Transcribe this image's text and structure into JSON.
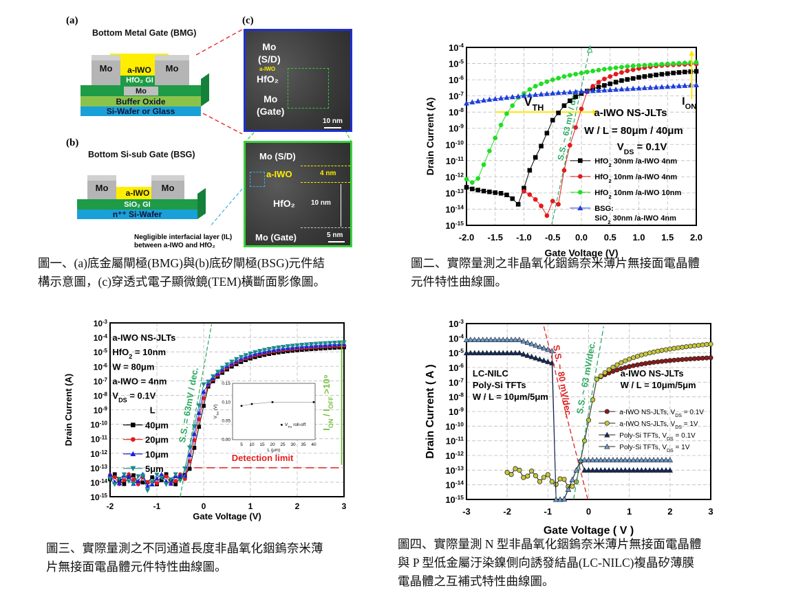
{
  "figure1": {
    "label_a": "(a)",
    "label_b": "(b)",
    "label_c": "(c)",
    "bmg_title": "Bottom Metal Gate (BMG)",
    "bmg_layers": {
      "mo_left": "Mo",
      "mo_right": "Mo",
      "channel": "a-IWO",
      "gi": "HfO₂ GI",
      "gate": "Mo",
      "buffer": "Buffer Oxide",
      "substrate": "Si-Wafer or Glass"
    },
    "bsg_title": "Bottom Si-sub Gate (BSG)",
    "bsg_layers": {
      "mo_left": "Mo",
      "mo_right": "Mo",
      "channel": "a-IWO",
      "gi": "SiO₂ GI",
      "substrate": "n⁺⁺ Si-Wafer"
    },
    "il_note_line1": "Negligible interfacial layer (IL)",
    "il_note_line2": "between a-IWO and HfO₂",
    "tem_top": {
      "sd": "Mo",
      "sd2": "(S/D)",
      "channel": "a-IWO",
      "oxide": "HfO₂",
      "gate": "Mo",
      "gate2": "(Gate)",
      "scale": "10 nm"
    },
    "tem_bottom": {
      "sd": "Mo (S/D)",
      "channel": "a-IWO",
      "channel_thk": "4 nm",
      "oxide": "HfO₂",
      "oxide_thk": "10 nm",
      "gate": "Mo (Gate)",
      "scale": "5 nm"
    },
    "caption_line1": "圖一、(a)底金屬閘極(BMG)與(b)底矽閘極(BSG)元件結",
    "caption_line2": "構示意圖，(c)穿透式電子顯微鏡(TEM)橫斷面影像圖。"
  },
  "figure2": {
    "caption_line1": "圖二、實際量測之非晶氧化銦鎢奈米薄片無接面電晶體",
    "caption_line2": "元件特性曲線圖。"
  },
  "figure3": {
    "caption_line1": "圖三、實際量測之不同通道長度非晶氧化銦鎢奈米薄",
    "caption_line2": "片無接面電晶體元件特性曲線圖。"
  },
  "figure4": {
    "caption_line1": "圖四、實際量測 N 型非晶氧化銦鎢奈米薄片無接面電晶體",
    "caption_line2": "與 P 型低金屬汙染鎳側向誘發結晶(LC-NILC)複晶矽薄膜",
    "caption_line3": "電晶體之互補式特性曲線圖。"
  },
  "chart_data": [
    {
      "id": "fig2",
      "type": "line",
      "yscale": "log",
      "xlabel": "Gate Voltage (V)",
      "ylabel": "Drain Current (A)",
      "xlim": [
        -2.0,
        2.0
      ],
      "ylim_exp": [
        -15,
        -4
      ],
      "xticks": [
        "-2.0",
        "-1.5",
        "-1.0",
        "-0.5",
        "0.0",
        "0.5",
        "1.0",
        "1.5",
        "2.0"
      ],
      "yticks_exp": [
        -4,
        -5,
        -6,
        -7,
        -8,
        -9,
        -10,
        -11,
        -12,
        -13,
        -14,
        -15
      ],
      "grid": true,
      "annotations": {
        "title": "a-IWO NS-JLTs",
        "wl": "W / L = 80μm / 40μm",
        "vds": "V",
        "vds_sub": "DS",
        "vds_val": " = 0.1V",
        "vth": "V",
        "vth_sub": "TH",
        "ion": "I",
        "ion_sub": "ON",
        "ss": "S.S. ~ 63 mV / dec."
      },
      "series": [
        {
          "name": "HfO₂ 30nm /a-IWO 4nm",
          "color": "#000000",
          "marker": "square",
          "x": [
            -2.0,
            -1.9,
            -1.8,
            -1.7,
            -1.6,
            -1.5,
            -1.4,
            -1.3,
            -1.2,
            -1.1,
            -1.0,
            -0.9,
            -0.8,
            -0.7,
            -0.6,
            -0.5,
            -0.4,
            -0.3,
            -0.2,
            -0.1,
            0.0,
            0.1,
            0.2,
            0.3,
            0.4,
            0.5,
            0.6,
            0.7,
            0.8,
            0.9,
            1.0,
            1.1,
            1.2,
            1.3,
            1.4,
            1.5,
            1.6,
            1.7,
            1.8,
            1.9,
            2.0
          ],
          "log_y": [
            -12.65,
            -12.75,
            -12.82,
            -12.88,
            -12.93,
            -12.98,
            -13.02,
            -13.12,
            -13.35,
            -13.7,
            -12.7,
            -11.6,
            -10.8,
            -10.1,
            -9.3,
            -8.5,
            -8.05,
            -7.6,
            -7.3,
            -7.05,
            -6.85,
            -6.7,
            -6.55,
            -6.45,
            -6.35,
            -6.25,
            -6.15,
            -6.05,
            -5.98,
            -5.92,
            -5.85,
            -5.8,
            -5.75,
            -5.7,
            -5.66,
            -5.62,
            -5.58,
            -5.55,
            -5.52,
            -5.5,
            -5.48
          ]
        },
        {
          "name": "HfO₂ 10nm /a-IWO 4nm",
          "color": "#e31a1c",
          "marker": "circle",
          "x": [
            -1.0,
            -0.9,
            -0.8,
            -0.7,
            -0.6,
            -0.5,
            -0.4,
            -0.3,
            -0.2,
            -0.1,
            0.0,
            0.1,
            0.2,
            0.3,
            0.4,
            0.5,
            0.6,
            0.7,
            0.8,
            0.9,
            1.0,
            1.1,
            1.2,
            1.3,
            1.4,
            1.5,
            1.6,
            1.7,
            1.8,
            1.9,
            2.0
          ],
          "log_y": [
            -12.9,
            -13.1,
            -13.4,
            -13.8,
            -14.4,
            -13.5,
            -13.7,
            -11.6,
            -10.05,
            -8.95,
            -7.8,
            -6.75,
            -6.4,
            -6.15,
            -5.95,
            -5.8,
            -5.65,
            -5.55,
            -5.45,
            -5.38,
            -5.3,
            -5.25,
            -5.2,
            -5.15,
            -5.12,
            -5.1,
            -5.08,
            -5.06,
            -5.05,
            -5.03,
            -5.02
          ]
        },
        {
          "name": "HfO₂ 10nm /a-IWO 10nm",
          "color": "#22dd22",
          "marker": "circle",
          "x": [
            -2.0,
            -1.9,
            -1.8,
            -1.7,
            -1.6,
            -1.5,
            -1.4,
            -1.3,
            -1.2,
            -1.1,
            -1.0,
            -0.9,
            -0.8,
            -0.7,
            -0.6,
            -0.5,
            -0.4,
            -0.3,
            -0.2,
            -0.1,
            0.0,
            0.1,
            0.2,
            0.3,
            0.4,
            0.5,
            0.6,
            0.7,
            0.8,
            0.9,
            1.0,
            1.1,
            1.2,
            1.3,
            1.4,
            1.5,
            1.6,
            1.7,
            1.8,
            1.9,
            2.0
          ],
          "log_y": [
            -12.15,
            -12.35,
            -12.1,
            -11.25,
            -10.4,
            -9.6,
            -8.8,
            -8.1,
            -7.6,
            -7.1,
            -6.85,
            -6.6,
            -6.4,
            -6.25,
            -6.12,
            -6.0,
            -5.9,
            -5.8,
            -5.72,
            -5.65,
            -5.58,
            -5.52,
            -5.46,
            -5.4,
            -5.35,
            -5.3,
            -5.26,
            -5.22,
            -5.18,
            -5.15,
            -5.12,
            -5.1,
            -5.08,
            -5.06,
            -5.04,
            -5.02,
            -5.0,
            -4.98,
            -4.96,
            -4.94,
            -4.92
          ]
        },
        {
          "name": "BSG: SiO₂ 30nm /a-IWO 4nm",
          "color": "#1f3fd8",
          "marker": "triangle",
          "x": [
            -2.0,
            -1.9,
            -1.8,
            -1.7,
            -1.6,
            -1.5,
            -1.4,
            -1.3,
            -1.2,
            -1.1,
            -1.0,
            -0.9,
            -0.8,
            -0.7,
            -0.6,
            -0.5,
            -0.4,
            -0.3,
            -0.2,
            -0.1,
            0.0,
            0.1,
            0.2,
            0.3,
            0.4,
            0.5,
            0.6,
            0.7,
            0.8,
            0.9,
            1.0,
            1.1,
            1.2,
            1.3,
            1.4,
            1.5,
            1.6,
            1.7,
            1.8,
            1.9,
            2.0
          ],
          "log_y": [
            -7.45,
            -7.38,
            -7.32,
            -7.27,
            -7.22,
            -7.18,
            -7.14,
            -7.1,
            -7.06,
            -7.02,
            -6.98,
            -6.95,
            -6.92,
            -6.89,
            -6.86,
            -6.83,
            -6.8,
            -6.78,
            -6.76,
            -6.74,
            -6.72,
            -6.7,
            -6.68,
            -6.66,
            -6.64,
            -6.62,
            -6.6,
            -6.58,
            -6.56,
            -6.54,
            -6.52,
            -6.5,
            -6.48,
            -6.46,
            -6.44,
            -6.42,
            -6.4,
            -6.38,
            -6.36,
            -6.34,
            -6.32
          ]
        }
      ]
    },
    {
      "id": "fig3",
      "type": "line",
      "yscale": "log",
      "xlabel": "Gate Voltage (V)",
      "ylabel": "Drain Current (A)",
      "xlim": [
        -2,
        3
      ],
      "ylim_exp": [
        -15,
        -3
      ],
      "xticks": [
        "-2",
        "-1",
        "0",
        "1",
        "2",
        "3"
      ],
      "yticks_exp": [
        -3,
        -4,
        -5,
        -6,
        -7,
        -8,
        -9,
        -10,
        -11,
        -12,
        -13,
        -14,
        -15
      ],
      "grid": true,
      "annotations": {
        "l1": "a-IWO NS-JLTs",
        "l2": "HfO₂ = 10nm",
        "l3": "W = 80μm",
        "l4": "a-IWO = 4nm",
        "l5": "V",
        "l5_sub": "DS",
        "l5_val": " = 0.1V",
        "legend_title": "L",
        "ss": "S.S. = 63mV / dec.",
        "onoff": "I",
        "onoff_sub1": "ON",
        "onoff_mid": " / I",
        "onoff_sub2": "OFF",
        "onoff_end": " >10⁹",
        "detection": "Detection limit",
        "detection_level_exp": -13
      },
      "series": [
        {
          "name": "40μm",
          "color": "#000000",
          "marker": "square",
          "offset": 0.0
        },
        {
          "name": "20μm",
          "color": "#e31a1c",
          "marker": "circle",
          "offset": 0.3
        },
        {
          "name": "10μm",
          "color": "#1f1fe0",
          "marker": "triangle",
          "offset": 0.55
        },
        {
          "name": "5μm",
          "color": "#1a8a8a",
          "marker": "triangle-down",
          "offset": 0.85
        }
      ],
      "inset": {
        "type": "scatter",
        "xlabel": "L (μm)",
        "ylabel": "V",
        "ylabel_sub": "TH",
        "ylabel_end": " (V)",
        "xlim": [
          0,
          40
        ],
        "ylim": [
          0.0,
          0.15
        ],
        "xticks": [
          "5",
          "10",
          "15",
          "20",
          "25",
          "30",
          "35",
          "40"
        ],
        "yticks": [
          "0.00",
          "0.05",
          "0.10",
          "0.15"
        ],
        "x": [
          5,
          10,
          20,
          40
        ],
        "y": [
          0.09,
          0.095,
          0.1,
          0.1
        ],
        "legend": "V",
        "legend_sub": "TH",
        "legend_end": " roll-off"
      }
    },
    {
      "id": "fig4",
      "type": "line",
      "yscale": "log",
      "xlabel": "Gate Voltage ( V )",
      "ylabel": "Drain Current ( A )",
      "xlim": [
        -3,
        3
      ],
      "ylim_exp": [
        -15,
        -3
      ],
      "xticks": [
        "-3",
        "-2",
        "-1",
        "0",
        "1",
        "2",
        "3"
      ],
      "yticks_exp": [
        -3,
        -4,
        -5,
        -6,
        -7,
        -8,
        -9,
        -10,
        -11,
        -12,
        -13,
        -14,
        -15
      ],
      "grid": true,
      "annotations": {
        "left1": "LC-NILC",
        "left2": "Poly-Si TFTs",
        "left3": "W / L = 10μm/5μm",
        "right1": "a-IWO NS-JLTs",
        "right2": "W / L = 10μm/5μm",
        "ss_p": "S.S. ~ 80 mV/dec.",
        "ss_n": "S.S. ~ 63 mV/dec."
      },
      "series": [
        {
          "name": "a-IWO NS-JLTs, V",
          "sub": "DS",
          "tail": " = 0.1V",
          "color": "#7a1010",
          "fill": "#8b1a1a",
          "marker": "circle"
        },
        {
          "name": "a-IWO NS-JLTs, V",
          "sub": "DS",
          "tail": " = 1V",
          "color": "#333",
          "fill": "#c8c83a",
          "marker": "circle"
        },
        {
          "name": "Poly-Si TFTs, V",
          "sub": "DS",
          "tail": " = 0.1V",
          "color": "#0d1f4a",
          "fill": "#14285a",
          "marker": "triangle"
        },
        {
          "name": "Poly-Si TFTs, V",
          "sub": "DS",
          "tail": " = 1V",
          "color": "#0d1f4a",
          "fill": "#6a9ad0",
          "marker": "triangle"
        }
      ]
    }
  ]
}
